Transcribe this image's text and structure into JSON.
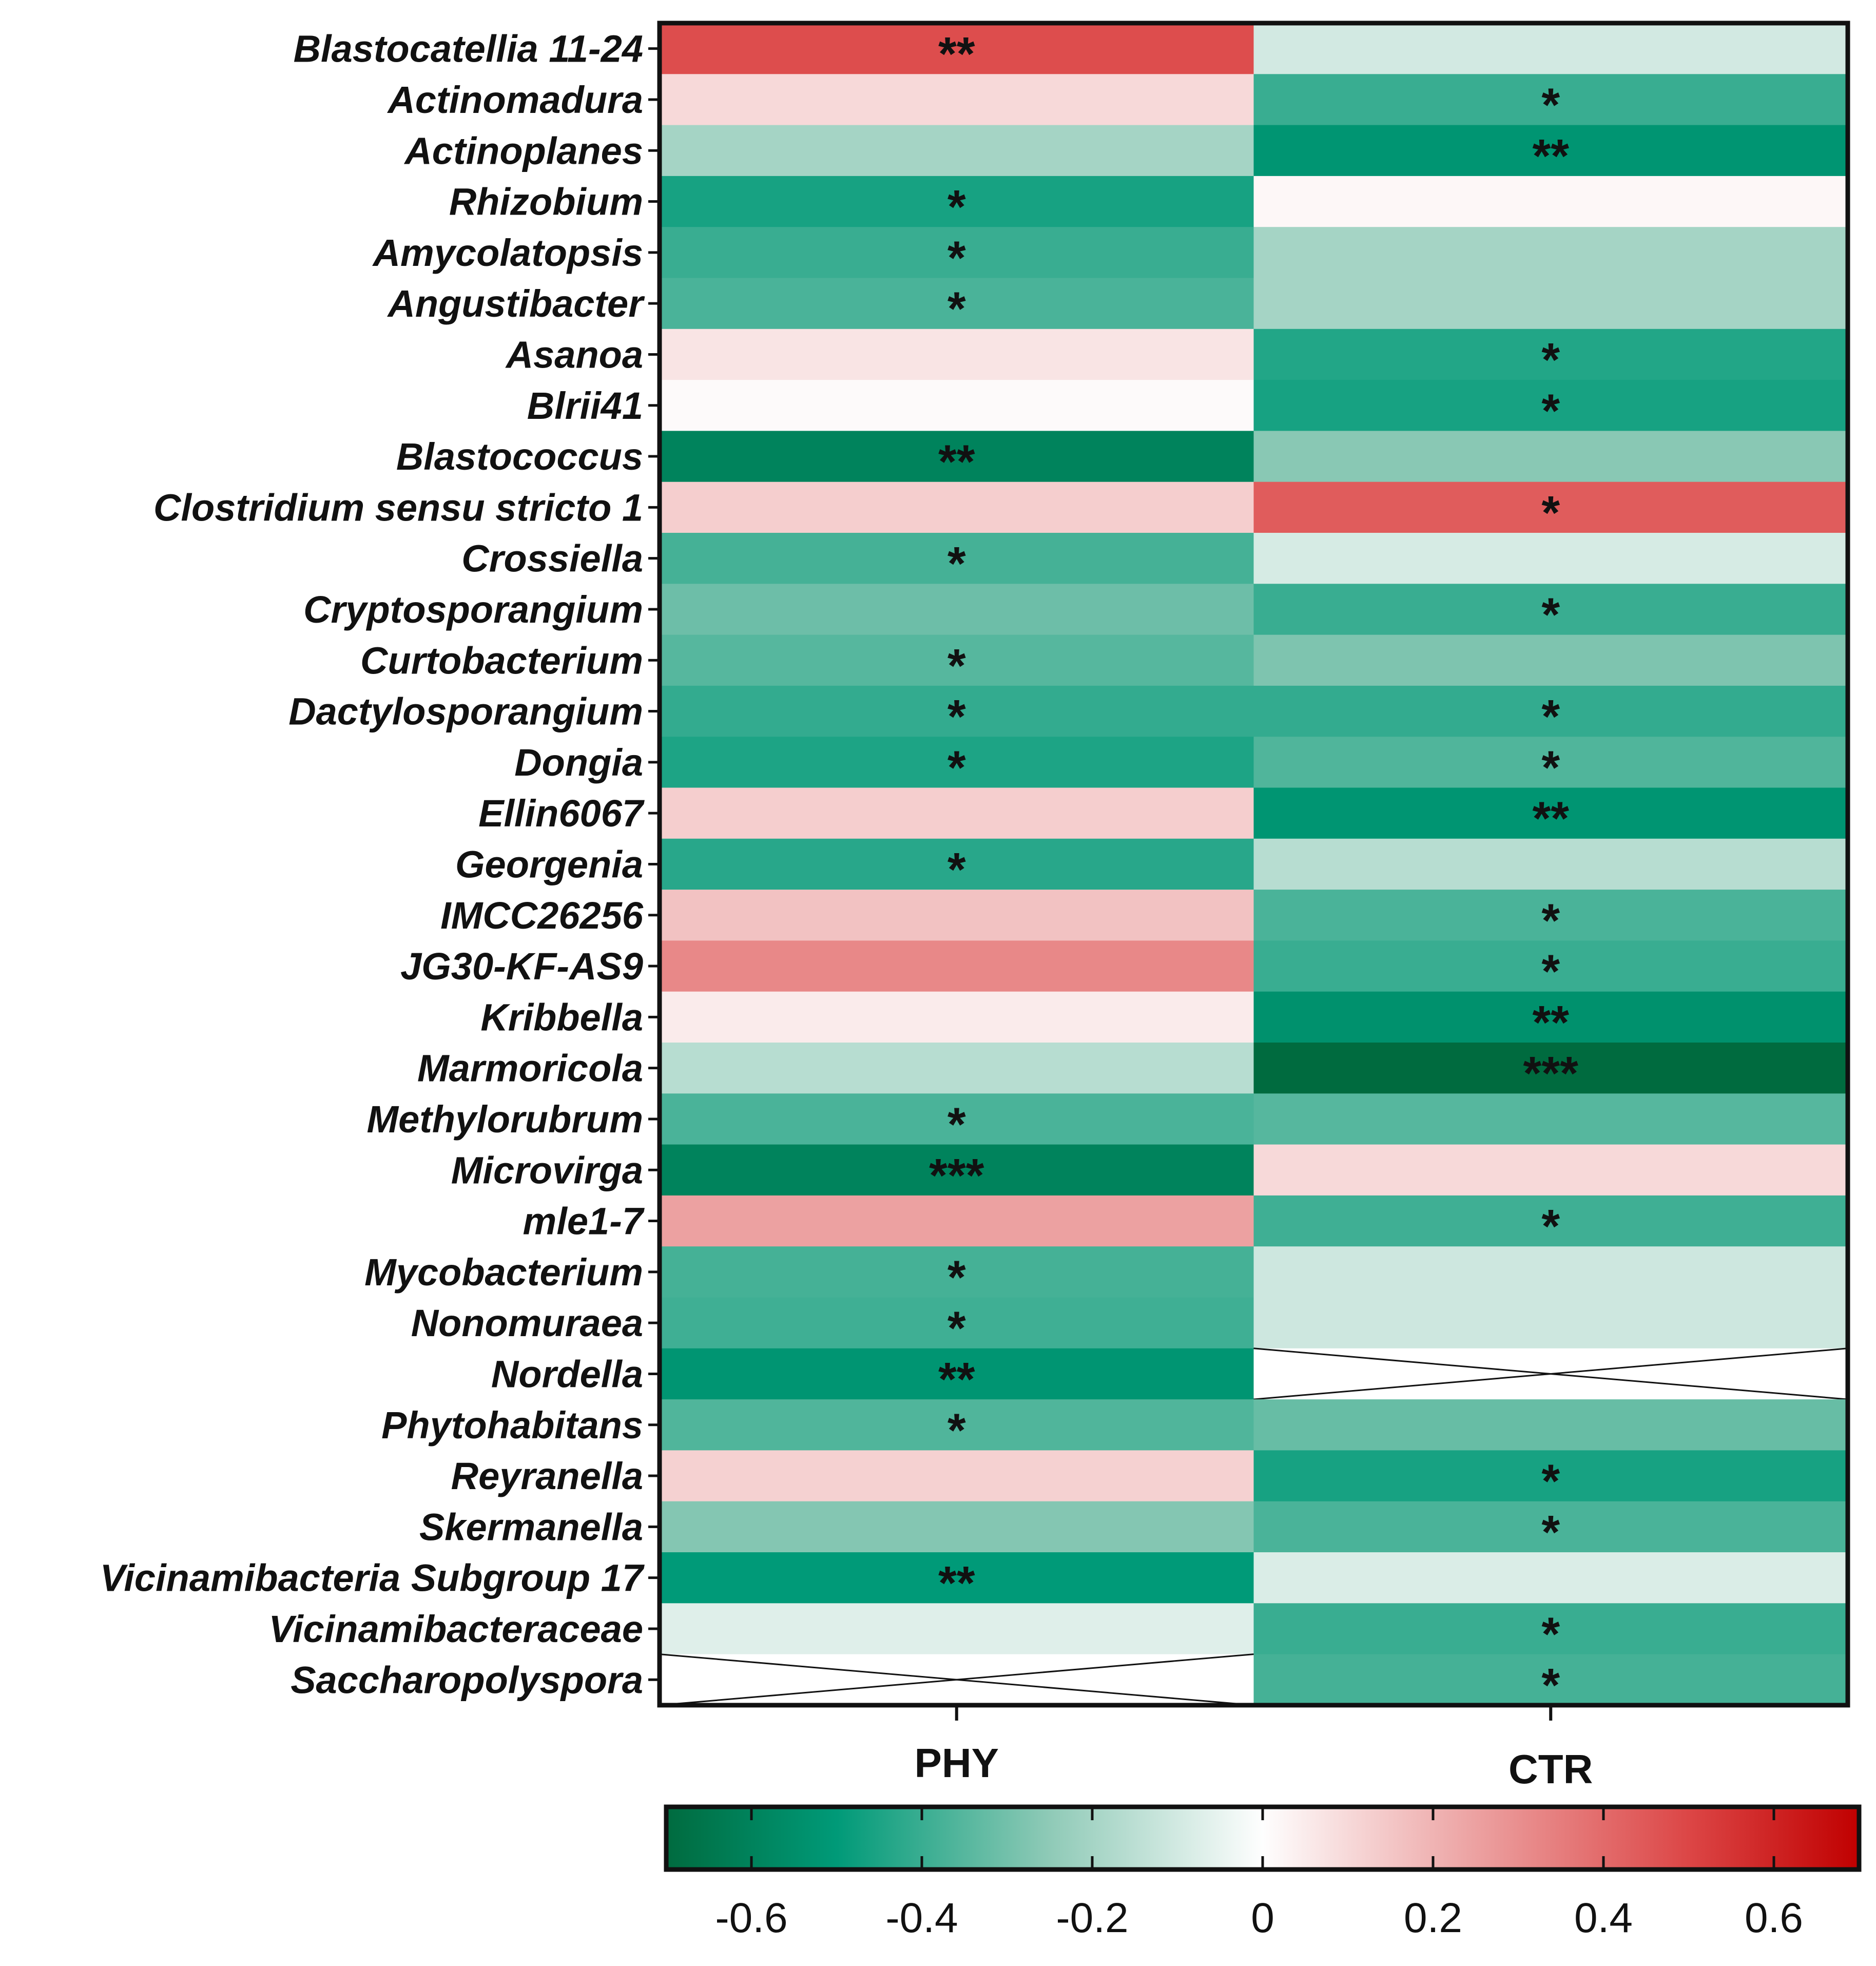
{
  "chart_data": {
    "type": "heatmap",
    "title": "",
    "columns": [
      "PHY",
      "CTR"
    ],
    "rows": [
      "Blastocatellia 11-24",
      "Actinomadura",
      "Actinoplanes",
      "Rhizobium",
      "Amycolatopsis",
      "Angustibacter",
      "Asanoa",
      "Blrii41",
      "Blastococcus",
      "Clostridium sensu stricto 1",
      "Crossiella",
      "Cryptosporangium",
      "Curtobacterium",
      "Dactylosporangium",
      "Dongia",
      "Ellin6067",
      "Georgenia",
      "IMCC26256",
      "JG30-KF-AS9",
      "Kribbella",
      "Marmoricola",
      "Methylorubrum",
      "Microvirga",
      "mle1-7",
      "Mycobacterium",
      "Nonomuraea",
      "Nordella",
      "Phytohabitans",
      "Reyranella",
      "Skermanella",
      "Vicinamibacteria Subgroup 17",
      "Vicinamibacteraceae",
      "Saccharopolyspora"
    ],
    "values": [
      [
        0.48,
        -0.1
      ],
      [
        0.1,
        -0.4
      ],
      [
        -0.2,
        -0.52
      ],
      [
        -0.46,
        0.02
      ],
      [
        -0.4,
        -0.2
      ],
      [
        -0.37,
        -0.2
      ],
      [
        0.07,
        -0.44
      ],
      [
        0.01,
        -0.46
      ],
      [
        -0.6,
        -0.26
      ],
      [
        0.13,
        0.44
      ],
      [
        -0.38,
        -0.09
      ],
      [
        -0.31,
        -0.4
      ],
      [
        -0.35,
        -0.28
      ],
      [
        -0.41,
        -0.41
      ],
      [
        -0.45,
        -0.36
      ],
      [
        0.13,
        -0.52
      ],
      [
        -0.43,
        -0.16
      ],
      [
        0.16,
        -0.37
      ],
      [
        0.32,
        -0.4
      ],
      [
        0.05,
        -0.54
      ],
      [
        -0.16,
        -0.7
      ],
      [
        -0.37,
        -0.35
      ],
      [
        -0.6,
        0.1
      ],
      [
        0.25,
        -0.39
      ],
      [
        -0.38,
        -0.11
      ],
      [
        -0.39,
        -0.11
      ],
      [
        -0.52,
        null
      ],
      [
        -0.36,
        -0.32
      ],
      [
        0.12,
        -0.46
      ],
      [
        -0.27,
        -0.37
      ],
      [
        -0.5,
        -0.08
      ],
      [
        -0.07,
        -0.4
      ],
      [
        null,
        -0.38
      ]
    ],
    "significance": [
      [
        "**",
        ""
      ],
      [
        "",
        "*"
      ],
      [
        "",
        "**"
      ],
      [
        "*",
        ""
      ],
      [
        "*",
        ""
      ],
      [
        "*",
        ""
      ],
      [
        "",
        "*"
      ],
      [
        "",
        "*"
      ],
      [
        "**",
        ""
      ],
      [
        "",
        "*"
      ],
      [
        "*",
        ""
      ],
      [
        "",
        "*"
      ],
      [
        "*",
        ""
      ],
      [
        "*",
        "*"
      ],
      [
        "*",
        "*"
      ],
      [
        "",
        "**"
      ],
      [
        "*",
        ""
      ],
      [
        "",
        "*"
      ],
      [
        "",
        "*"
      ],
      [
        "",
        "**"
      ],
      [
        "",
        "***"
      ],
      [
        "*",
        ""
      ],
      [
        "***",
        ""
      ],
      [
        "",
        "*"
      ],
      [
        "*",
        ""
      ],
      [
        "*",
        ""
      ],
      [
        "**",
        ""
      ],
      [
        "*",
        ""
      ],
      [
        "",
        "*"
      ],
      [
        "",
        "*"
      ],
      [
        "**",
        ""
      ],
      [
        "",
        "*"
      ],
      [
        "",
        "*"
      ]
    ],
    "colorbar": {
      "range": [
        -0.7,
        0.7
      ],
      "ticks": [
        -0.6,
        -0.4,
        -0.2,
        0,
        0.2,
        0.4,
        0.6
      ],
      "tick_labels": [
        "-0.6",
        "-0.4",
        "-0.2",
        "0",
        "0.2",
        "0.4",
        "0.6"
      ],
      "stops": [
        {
          "value": -0.7,
          "color": "#006b3f"
        },
        {
          "value": -0.5,
          "color": "#009a78"
        },
        {
          "value": -0.25,
          "color": "#8fcab7"
        },
        {
          "value": 0,
          "color": "#fefefe"
        },
        {
          "value": 0.25,
          "color": "#eca1a1"
        },
        {
          "value": 0.5,
          "color": "#dc4646"
        },
        {
          "value": 0.7,
          "color": "#c00000"
        }
      ]
    },
    "missing_marker": "X (no data)"
  }
}
